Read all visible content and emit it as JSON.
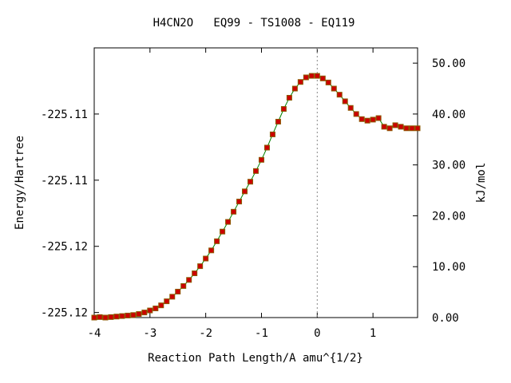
{
  "chart_data": {
    "type": "line",
    "title": "H4CN2O   EQ99 - TS1008 - EQ119",
    "xlabel": "Reaction Path Length/A amu^{1/2}",
    "ylabel_left": "Energy/Hartree",
    "ylabel_right": "kJ/mol",
    "xlim": [
      -4,
      1.8
    ],
    "ylim_right": [
      0,
      53
    ],
    "x_ticks": [
      "-4",
      "-3",
      "-2",
      "-1",
      "0",
      "1"
    ],
    "y_left_ticks": [
      "-225.11",
      "-225.11",
      "-225.12",
      "-225.12"
    ],
    "y_left_tick_kj": [
      40,
      27,
      14,
      1
    ],
    "y_right_ticks": [
      "0.00",
      "10.00",
      "20.00",
      "30.00",
      "40.00",
      "50.00"
    ],
    "ts_marker_x": 0,
    "grid": false,
    "colors": {
      "line": "#008000",
      "marker": "#cc0000",
      "marker_edge": "#8b5a00",
      "ts_line": "#888888"
    },
    "series": [
      {
        "x": [
          -4.0,
          -3.9,
          -3.8,
          -3.7,
          -3.6,
          -3.5,
          -3.4,
          -3.3,
          -3.2,
          -3.1,
          -3.0,
          -2.9,
          -2.8,
          -2.7,
          -2.6,
          -2.5,
          -2.4,
          -2.3,
          -2.2,
          -2.1,
          -2.0,
          -1.9,
          -1.8,
          -1.7,
          -1.6,
          -1.5,
          -1.4,
          -1.3,
          -1.2,
          -1.1,
          -1.0,
          -0.9,
          -0.8,
          -0.7,
          -0.6,
          -0.5,
          -0.4,
          -0.3,
          -0.2,
          -0.1,
          0.0,
          0.1,
          0.2,
          0.3,
          0.4,
          0.5,
          0.6,
          0.7,
          0.8,
          0.9,
          1.0,
          1.1,
          1.2,
          1.3,
          1.4,
          1.5,
          1.6,
          1.7,
          1.8
        ],
        "values": [
          0.0,
          0.1,
          0.0,
          0.1,
          0.2,
          0.3,
          0.4,
          0.5,
          0.7,
          1.0,
          1.4,
          1.8,
          2.4,
          3.2,
          4.1,
          5.1,
          6.2,
          7.4,
          8.7,
          10.1,
          11.6,
          13.2,
          15.0,
          16.9,
          18.8,
          20.8,
          22.8,
          24.8,
          26.7,
          28.8,
          31.0,
          33.4,
          36.0,
          38.5,
          41.0,
          43.2,
          45.0,
          46.3,
          47.2,
          47.5,
          47.5,
          47.0,
          46.2,
          45.0,
          43.8,
          42.5,
          41.2,
          40.0,
          39.0,
          38.7,
          38.9,
          39.2,
          37.5,
          37.2,
          37.8,
          37.5,
          37.2,
          37.2,
          37.2
        ]
      }
    ]
  }
}
